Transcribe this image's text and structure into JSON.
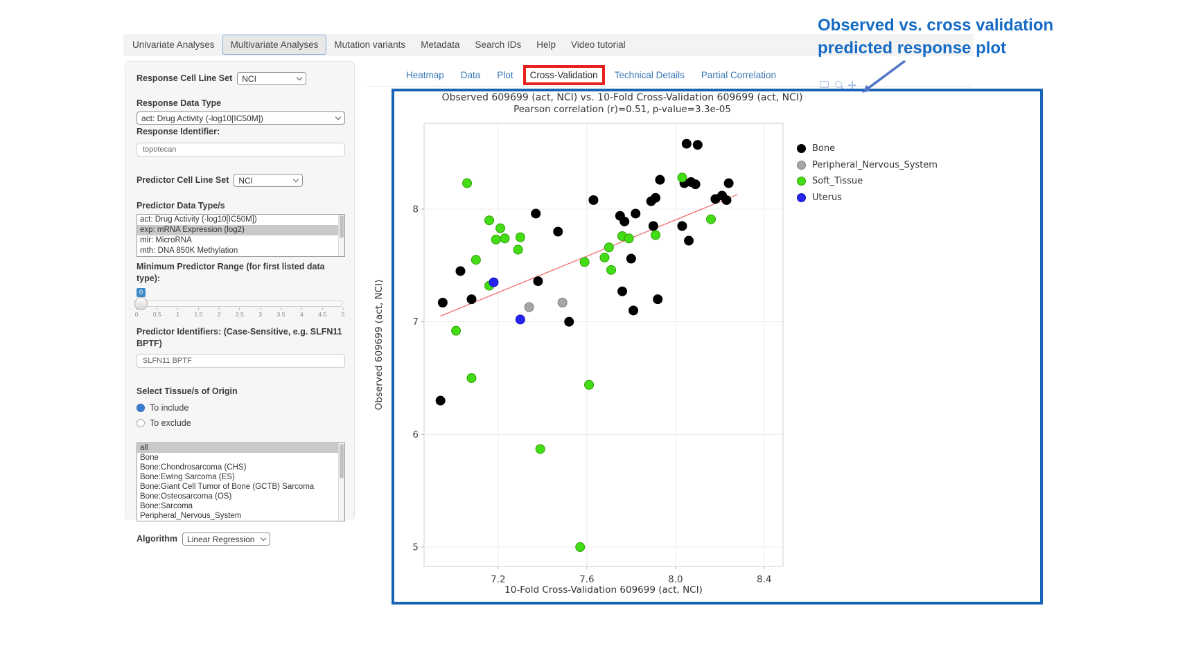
{
  "nav": {
    "items": [
      {
        "label": "Univariate Analyses",
        "active": false
      },
      {
        "label": "Multivariate Analyses",
        "active": true
      },
      {
        "label": "Mutation variants",
        "active": false
      },
      {
        "label": "Metadata",
        "active": false
      },
      {
        "label": "Search IDs",
        "active": false
      },
      {
        "label": "Help",
        "active": false
      },
      {
        "label": "Video tutorial",
        "active": false
      }
    ]
  },
  "annotation": {
    "line1": "Observed vs. cross validation",
    "line2": "predicted response plot",
    "color": "#156bc4"
  },
  "sidebar": {
    "response_cell_line_set_label": "Response Cell Line Set",
    "response_cell_line_set_value": "NCI",
    "response_data_type_label": "Response Data Type",
    "response_data_type_value": "act: Drug Activity (-log10[IC50M])",
    "response_identifier_label": "Response Identifier:",
    "response_identifier_value": "topotecan",
    "predictor_cell_line_set_label": "Predictor Cell Line Set",
    "predictor_cell_line_set_value": "NCI",
    "predictor_data_types_label": "Predictor Data Type/s",
    "predictor_data_types": [
      {
        "label": "act: Drug Activity (-log10[IC50M])",
        "selected": false
      },
      {
        "label": "exp: mRNA Expression (log2)",
        "selected": true
      },
      {
        "label": "mir: MicroRNA",
        "selected": false
      },
      {
        "label": "mth: DNA 850K Methylation",
        "selected": false
      }
    ],
    "min_predictor_range_label": "Minimum Predictor Range (for first listed data type):",
    "slider": {
      "value": "0",
      "ticks": [
        "0",
        "0.5",
        "1",
        "1.5",
        "2",
        "2.5",
        "3",
        "3.5",
        "4",
        "4.5",
        "5"
      ]
    },
    "predictor_identifiers_label": "Predictor Identifiers: (Case-Sensitive, e.g. SLFN11 BPTF)",
    "predictor_identifiers_value": "SLFN11 BPTF",
    "tissue_label": "Select Tissue/s of Origin",
    "tissue_radios": [
      {
        "label": "To include",
        "checked": true
      },
      {
        "label": "To exclude",
        "checked": false
      }
    ],
    "tissues": [
      {
        "label": "all",
        "selected": true
      },
      {
        "label": "Bone",
        "selected": false
      },
      {
        "label": "Bone:Chondrosarcoma (CHS)",
        "selected": false
      },
      {
        "label": "Bone:Ewing Sarcoma (ES)",
        "selected": false
      },
      {
        "label": "Bone:Giant Cell Tumor of Bone (GCTB) Sarcoma",
        "selected": false
      },
      {
        "label": "Bone:Osteosarcoma (OS)",
        "selected": false
      },
      {
        "label": "Bone:Sarcoma",
        "selected": false
      },
      {
        "label": "Peripheral_Nervous_System",
        "selected": false
      }
    ],
    "algorithm_label": "Algorithm",
    "algorithm_value": "Linear Regression"
  },
  "tabs": [
    {
      "label": "Heatmap",
      "active": false,
      "highlighted": false
    },
    {
      "label": "Data",
      "active": false,
      "highlighted": false
    },
    {
      "label": "Plot",
      "active": false,
      "highlighted": false
    },
    {
      "label": "Cross-Validation",
      "active": true,
      "highlighted": true
    },
    {
      "label": "Technical Details",
      "active": false,
      "highlighted": false
    },
    {
      "label": "Partial Correlation",
      "active": false,
      "highlighted": false
    }
  ],
  "modebar": {
    "icons": [
      "camera-icon",
      "magnifier-icon",
      "pan-icon"
    ]
  },
  "chart_data": {
    "type": "scatter",
    "title": "Observed 609699 (act, NCI) vs. 10-Fold Cross-Validation 609699 (act, NCI)",
    "subtitle": "Pearson correlation (r)=0.51, p-value=3.3e-05",
    "xlabel": "10-Fold Cross-Validation 609699 (act, NCI)",
    "ylabel": "Observed 609699 (act, NCI)",
    "xlim": [
      6.866,
      8.485
    ],
    "ylim": [
      4.828,
      8.762
    ],
    "xticks": [
      {
        "v": 7.2,
        "label": "7.2"
      },
      {
        "v": 7.6,
        "label": "7.6"
      },
      {
        "v": 8.0,
        "label": "8.0"
      },
      {
        "v": 8.4,
        "label": "8.4"
      }
    ],
    "yticks": [
      {
        "v": 5,
        "label": "5"
      },
      {
        "v": 6,
        "label": "6"
      },
      {
        "v": 7,
        "label": "7"
      },
      {
        "v": 8,
        "label": "8"
      }
    ],
    "grid": true,
    "legend_position": "right",
    "trendline": {
      "color": "#f26d6d",
      "x": [
        6.94,
        8.28
      ],
      "y": [
        7.05,
        8.13
      ]
    },
    "series": [
      {
        "name": "Bone",
        "color": "#000000",
        "stroke": "#000000",
        "points": [
          [
            6.94,
            6.3
          ],
          [
            6.95,
            7.17
          ],
          [
            7.03,
            7.45
          ],
          [
            7.08,
            7.2
          ],
          [
            7.37,
            7.96
          ],
          [
            7.38,
            7.36
          ],
          [
            7.47,
            7.8
          ],
          [
            7.52,
            7.0
          ],
          [
            7.63,
            8.08
          ],
          [
            7.75,
            7.94
          ],
          [
            7.76,
            7.27
          ],
          [
            7.77,
            7.89
          ],
          [
            7.8,
            7.56
          ],
          [
            7.81,
            7.1
          ],
          [
            7.82,
            7.96
          ],
          [
            7.89,
            8.07
          ],
          [
            7.9,
            7.85
          ],
          [
            7.91,
            8.1
          ],
          [
            7.92,
            7.2
          ],
          [
            7.93,
            8.26
          ],
          [
            8.03,
            7.85
          ],
          [
            8.04,
            8.23
          ],
          [
            8.05,
            8.58
          ],
          [
            8.06,
            7.72
          ],
          [
            8.07,
            8.24
          ],
          [
            8.09,
            8.22
          ],
          [
            8.1,
            8.57
          ],
          [
            8.18,
            8.09
          ],
          [
            8.21,
            8.12
          ],
          [
            8.23,
            8.08
          ],
          [
            8.24,
            8.23
          ]
        ]
      },
      {
        "name": "Peripheral_Nervous_System",
        "color": "#a6a6a6",
        "stroke": "#7d7d7d",
        "points": [
          [
            7.34,
            7.13
          ],
          [
            7.49,
            7.17
          ]
        ]
      },
      {
        "name": "Soft_Tissue",
        "color": "#43dd15",
        "stroke": "#2e9e07",
        "points": [
          [
            7.01,
            6.92
          ],
          [
            7.06,
            8.23
          ],
          [
            7.08,
            6.5
          ],
          [
            7.1,
            7.55
          ],
          [
            7.16,
            7.9
          ],
          [
            7.16,
            7.32
          ],
          [
            7.19,
            7.73
          ],
          [
            7.21,
            7.83
          ],
          [
            7.23,
            7.74
          ],
          [
            7.29,
            7.64
          ],
          [
            7.3,
            7.75
          ],
          [
            7.39,
            5.87
          ],
          [
            7.57,
            5.0
          ],
          [
            7.59,
            7.53
          ],
          [
            7.61,
            6.44
          ],
          [
            7.68,
            7.57
          ],
          [
            7.7,
            7.66
          ],
          [
            7.71,
            7.46
          ],
          [
            7.76,
            7.76
          ],
          [
            7.79,
            7.74
          ],
          [
            7.91,
            7.77
          ],
          [
            8.03,
            8.28
          ],
          [
            8.16,
            7.91
          ]
        ]
      },
      {
        "name": "Uterus",
        "color": "#2723ee",
        "stroke": "#1414b8",
        "points": [
          [
            7.18,
            7.35
          ],
          [
            7.3,
            7.02
          ]
        ]
      }
    ]
  }
}
